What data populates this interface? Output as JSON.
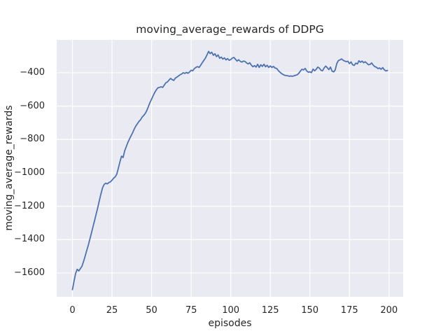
{
  "chart_data": {
    "type": "line",
    "title": "moving_average_rewards of DDPG",
    "xlabel": "episodes",
    "ylabel": "moving_average_rewards",
    "x_start": 0,
    "x_step": 1,
    "x_note": "x = episode index 0..199, one point per episode",
    "values": [
      -1700,
      -1650,
      -1603,
      -1578,
      -1588,
      -1574,
      -1560,
      -1532,
      -1500,
      -1466,
      -1434,
      -1398,
      -1360,
      -1322,
      -1285,
      -1246,
      -1208,
      -1166,
      -1126,
      -1090,
      -1070,
      -1062,
      -1066,
      -1058,
      -1054,
      -1044,
      -1032,
      -1024,
      -1008,
      -972,
      -934,
      -900,
      -908,
      -868,
      -843,
      -818,
      -798,
      -778,
      -760,
      -738,
      -720,
      -706,
      -692,
      -682,
      -666,
      -656,
      -644,
      -626,
      -602,
      -578,
      -558,
      -537,
      -518,
      -502,
      -490,
      -488,
      -484,
      -488,
      -474,
      -460,
      -455,
      -444,
      -434,
      -441,
      -446,
      -432,
      -426,
      -419,
      -412,
      -407,
      -400,
      -404,
      -398,
      -403,
      -395,
      -385,
      -388,
      -375,
      -368,
      -363,
      -368,
      -355,
      -340,
      -326,
      -312,
      -293,
      -272,
      -285,
      -277,
      -295,
      -286,
      -303,
      -293,
      -313,
      -306,
      -318,
      -311,
      -323,
      -315,
      -325,
      -321,
      -312,
      -308,
      -319,
      -330,
      -322,
      -331,
      -336,
      -330,
      -332,
      -341,
      -347,
      -340,
      -354,
      -364,
      -357,
      -366,
      -349,
      -368,
      -352,
      -362,
      -349,
      -364,
      -355,
      -368,
      -359,
      -368,
      -362,
      -372,
      -374,
      -386,
      -396,
      -404,
      -410,
      -415,
      -417,
      -418,
      -421,
      -419,
      -421,
      -418,
      -415,
      -412,
      -403,
      -390,
      -379,
      -383,
      -374,
      -389,
      -397,
      -394,
      -399,
      -378,
      -388,
      -379,
      -366,
      -372,
      -385,
      -388,
      -371,
      -360,
      -370,
      -381,
      -366,
      -390,
      -395,
      -383,
      -345,
      -327,
      -323,
      -317,
      -325,
      -330,
      -333,
      -331,
      -345,
      -335,
      -352,
      -356,
      -342,
      -347,
      -328,
      -337,
      -330,
      -340,
      -334,
      -343,
      -352,
      -350,
      -341,
      -354,
      -363,
      -367,
      -375,
      -371,
      -379,
      -369,
      -382,
      -389,
      -386
    ],
    "xticks": [
      0,
      25,
      50,
      75,
      100,
      125,
      150,
      175,
      200
    ],
    "yticks": [
      -400,
      -600,
      -800,
      -1000,
      -1200,
      -1400,
      -1600
    ],
    "xlim": [
      -9.95,
      208.95
    ],
    "ylim": [
      -1743,
      -203
    ],
    "grid": true,
    "legend_position": "none",
    "colors": {
      "line": "#4C72B0",
      "plot_background": "#EAEAF2",
      "grid": "#FFFFFF",
      "text": "#262626",
      "figure_background": "#FFFFFF"
    }
  }
}
